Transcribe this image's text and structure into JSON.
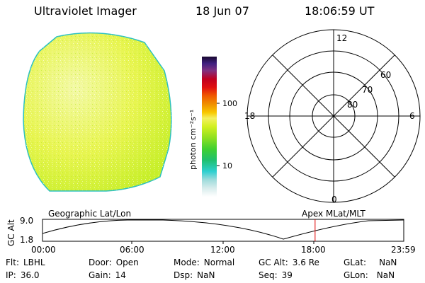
{
  "header": {
    "instrument": "Ultraviolet Imager",
    "date": "18 Jun 07",
    "time": "18:06:59 UT"
  },
  "colorbar": {
    "label": "photon cm⁻²s⁻¹",
    "ticks": [
      "100",
      "10"
    ],
    "scale": "log"
  },
  "polar_plot": {
    "mlt_labels": [
      "12",
      "18",
      "6",
      "0"
    ],
    "lat_labels": [
      "60",
      "70",
      "80"
    ]
  },
  "orbit_plot": {
    "left_label": "Geographic Lat/Lon",
    "right_label": "Apex MLat/MLT",
    "y_axis_label": "GC Alt",
    "y_ticks": [
      "9.0",
      "1.8"
    ],
    "x_ticks": [
      "00:00",
      "06:00",
      "12:00",
      "18:00",
      "23:59"
    ],
    "current_time_hours": 18.11,
    "current_marker_color": "#e00000"
  },
  "info": {
    "filter": {
      "label": "Flt:",
      "value": "LBHL"
    },
    "ip": {
      "label": "IP:",
      "value": "36.0"
    },
    "door": {
      "label": "Door:",
      "value": "Open"
    },
    "gain": {
      "label": "Gain:",
      "value": "14"
    },
    "mode": {
      "label": "Mode:",
      "value": "Normal"
    },
    "dsp": {
      "label": "Dsp:",
      "value": "NaN"
    },
    "gc_alt": {
      "label": "GC Alt:",
      "value": "3.6 Re"
    },
    "seq": {
      "label": "Seq:",
      "value": "39"
    },
    "glat": {
      "label": "GLat:",
      "value": "NaN"
    },
    "glon": {
      "label": "GLon:",
      "value": "NaN"
    }
  },
  "colors": {
    "disk_fill": "#e6f53a",
    "disk_edge": "#2ac0c0",
    "polar_lines": "#000000"
  }
}
